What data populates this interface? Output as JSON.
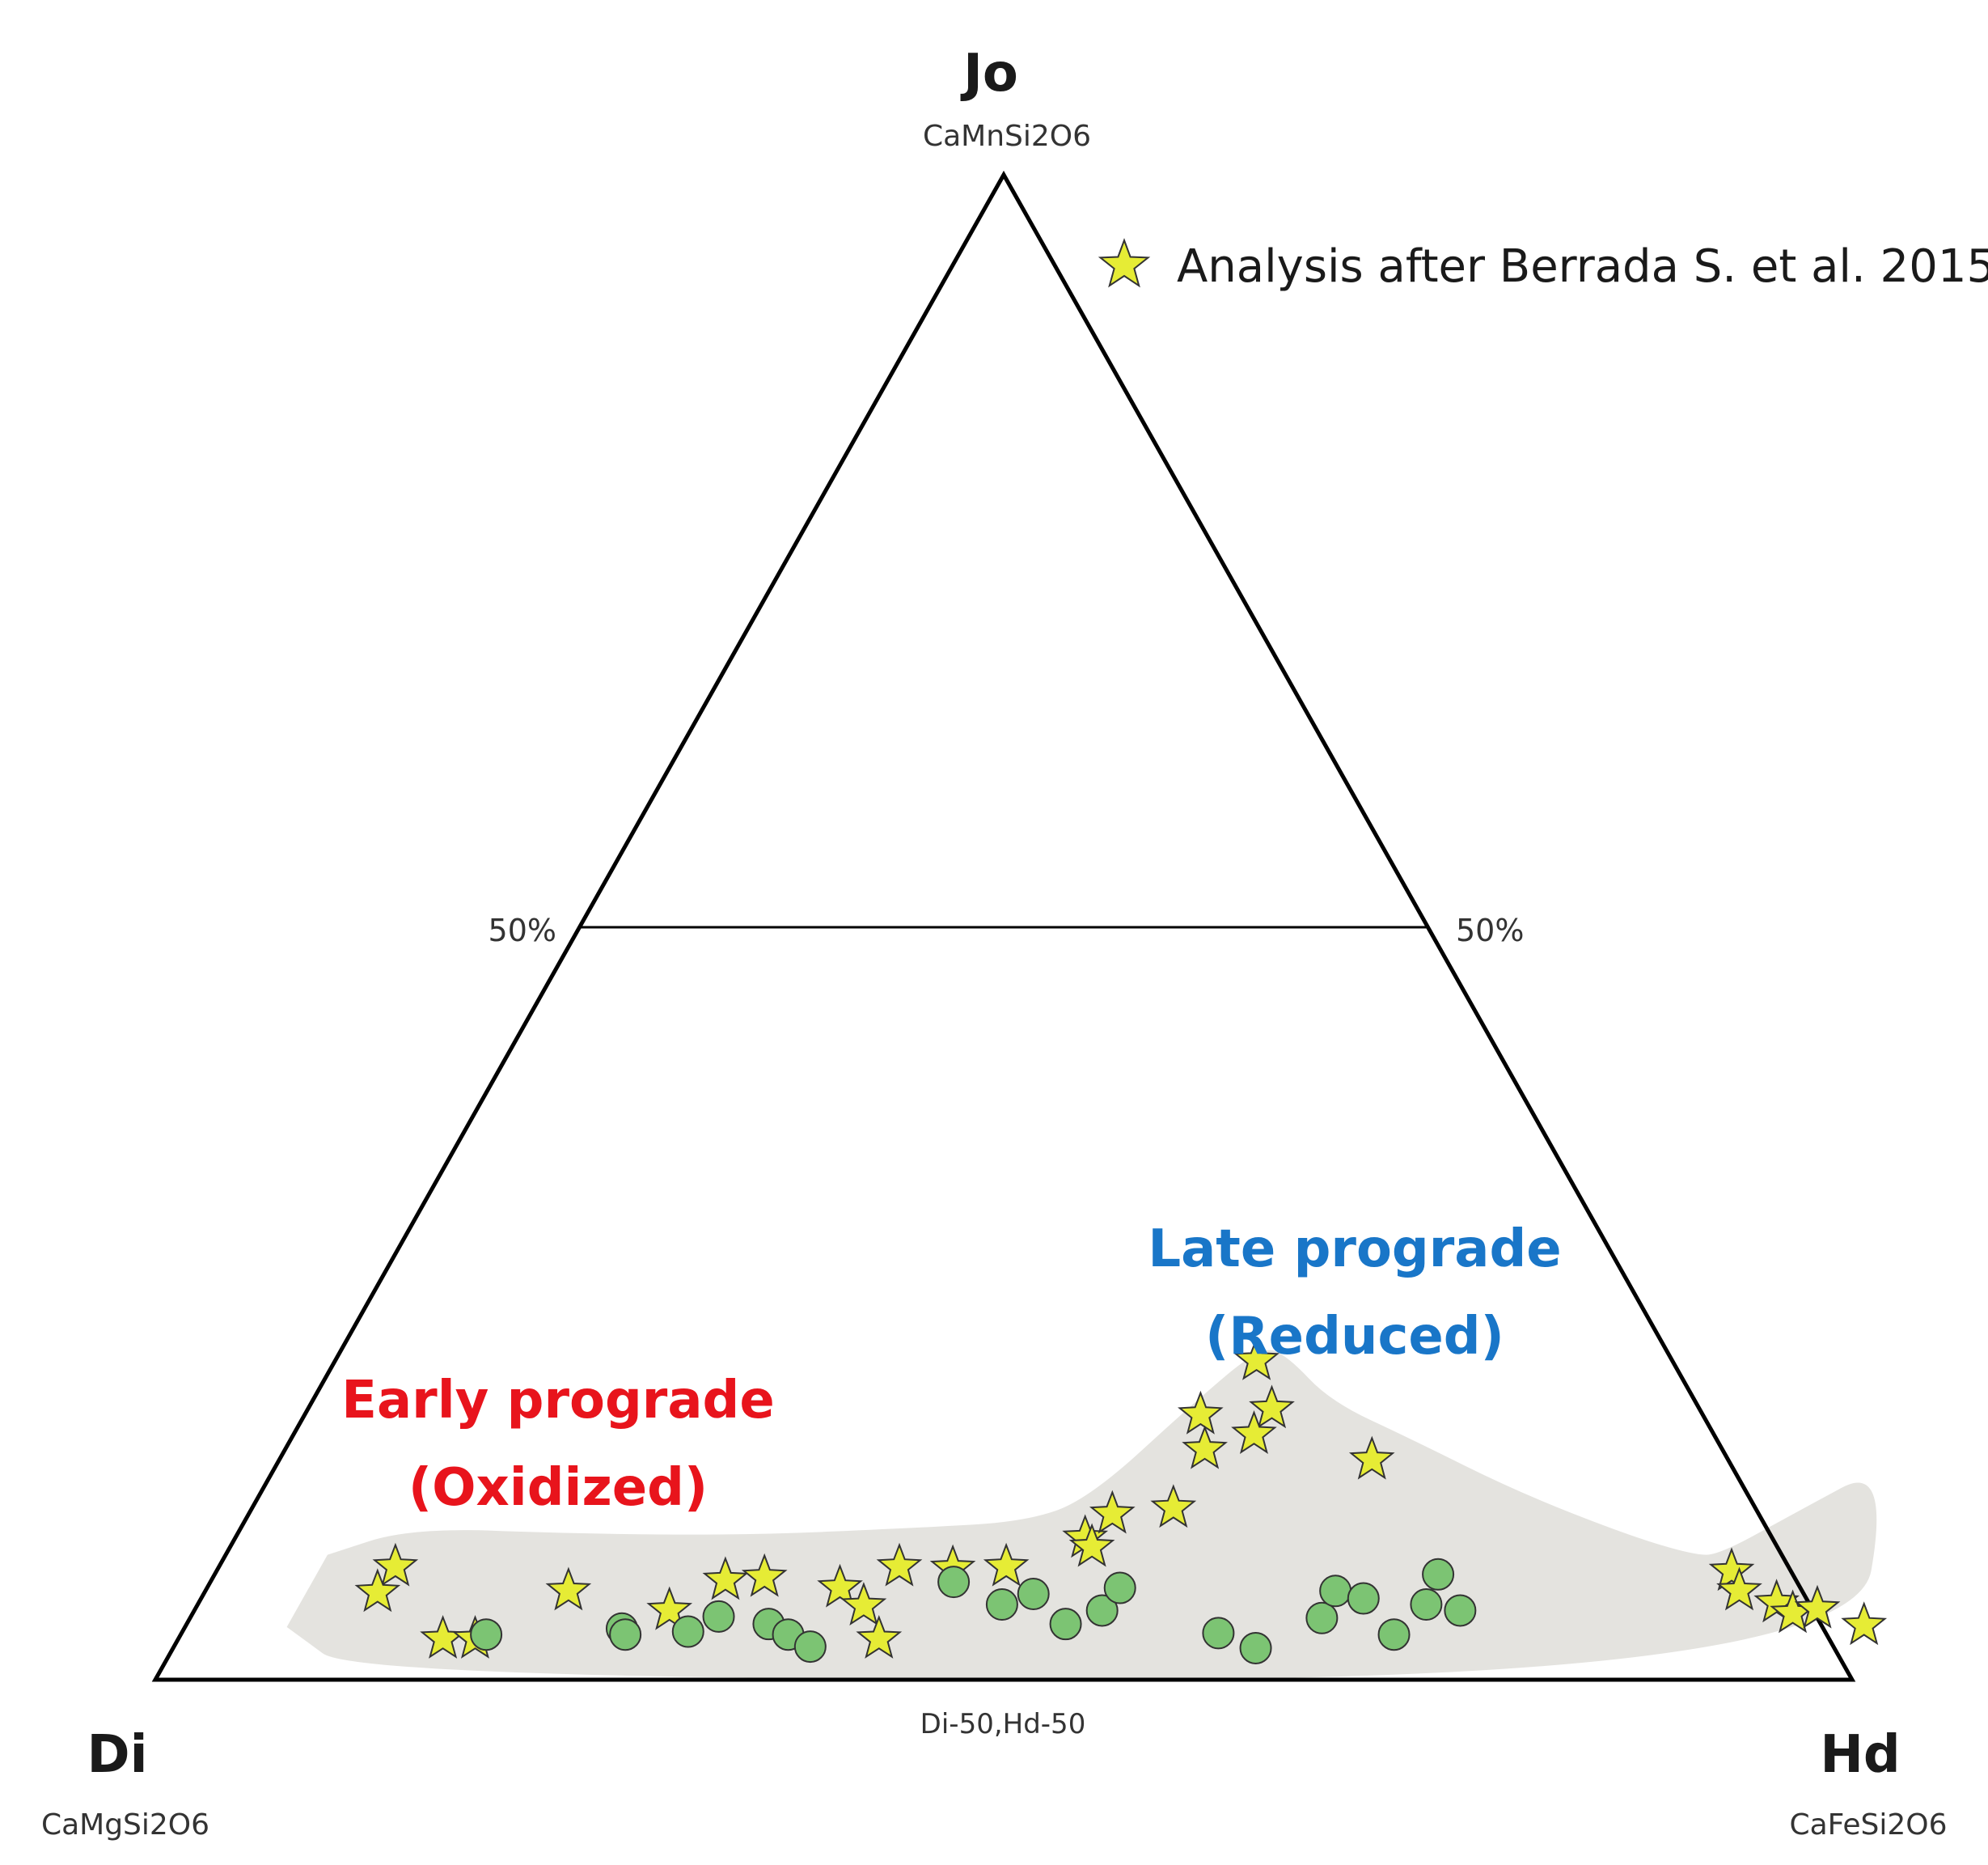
{
  "chart_data": {
    "type": "ternary",
    "vertices": {
      "top": {
        "name": "Jo",
        "formula": "CaMnSi2O6"
      },
      "left": {
        "name": "Di",
        "formula": "CaMgSi2O6"
      },
      "right": {
        "name": "Hd",
        "formula": "CaFeSi2O6"
      }
    },
    "tick_labels": {
      "left": "50%",
      "right": "50%",
      "bottom_mid": "Di-50,Hd-50"
    },
    "reference_line_jo": 50,
    "legend": [
      {
        "label": "Analysis after Berrada S. et al. 2015",
        "marker": "star"
      }
    ],
    "fields": [
      {
        "label_line1": "Early prograde",
        "label_line2": "(Oxidized)",
        "color": "#e8141c"
      },
      {
        "label_line1": "Late prograde",
        "label_line2": "(Reduced)",
        "color": "#1976c8"
      }
    ],
    "series": [
      {
        "name": "Analysis after Berrada S. et al. 2015",
        "marker": "star",
        "color": "#e6ec35",
        "points": [
          {
            "hd": 10.4,
            "jo": 7.5
          },
          {
            "hd": 10.2,
            "jo": 5.8
          },
          {
            "hd": 15.6,
            "jo": 2.7
          },
          {
            "hd": 17.5,
            "jo": 2.7
          },
          {
            "hd": 21.4,
            "jo": 5.9
          },
          {
            "hd": 28.0,
            "jo": 4.6
          },
          {
            "hd": 30.3,
            "jo": 6.6
          },
          {
            "hd": 32.5,
            "jo": 6.8
          },
          {
            "hd": 37.3,
            "jo": 6.1
          },
          {
            "hd": 39.3,
            "jo": 4.9
          },
          {
            "hd": 41.3,
            "jo": 2.7
          },
          {
            "hd": 40.1,
            "jo": 7.5
          },
          {
            "hd": 43.3,
            "jo": 7.4
          },
          {
            "hd": 46.4,
            "jo": 7.5
          },
          {
            "hd": 50.1,
            "jo": 9.4
          },
          {
            "hd": 50.8,
            "jo": 8.8
          },
          {
            "hd": 50.9,
            "jo": 11.0
          },
          {
            "hd": 54.3,
            "jo": 11.4
          },
          {
            "hd": 54.3,
            "jo": 21.2
          },
          {
            "hd": 52.8,
            "jo": 17.6
          },
          {
            "hd": 56.8,
            "jo": 18.0
          },
          {
            "hd": 56.6,
            "jo": 16.3
          },
          {
            "hd": 54.2,
            "jo": 15.3
          },
          {
            "hd": 64.4,
            "jo": 14.6
          },
          {
            "hd": 89.3,
            "jo": 7.2
          },
          {
            "hd": 90.4,
            "jo": 5.9
          },
          {
            "hd": 93.0,
            "jo": 5.1
          },
          {
            "hd": 94.3,
            "jo": 4.4
          },
          {
            "hd": 95.6,
            "jo": 4.7
          },
          {
            "hd": 98.9,
            "jo": 3.6
          }
        ]
      },
      {
        "name": "",
        "marker": "circle",
        "color": "#7cc473",
        "points": [
          {
            "hd": 18.0,
            "jo": 3.0
          },
          {
            "hd": 25.8,
            "jo": 3.4
          },
          {
            "hd": 26.2,
            "jo": 3.0
          },
          {
            "hd": 29.8,
            "jo": 3.2
          },
          {
            "hd": 31.1,
            "jo": 4.2
          },
          {
            "hd": 34.3,
            "jo": 3.7
          },
          {
            "hd": 35.8,
            "jo": 3.0
          },
          {
            "hd": 37.5,
            "jo": 2.2
          },
          {
            "hd": 43.8,
            "jo": 6.5
          },
          {
            "hd": 47.4,
            "jo": 5.0
          },
          {
            "hd": 48.9,
            "jo": 5.7
          },
          {
            "hd": 51.8,
            "jo": 3.7
          },
          {
            "hd": 53.5,
            "jo": 4.6
          },
          {
            "hd": 53.8,
            "jo": 6.1
          },
          {
            "hd": 61.1,
            "jo": 3.1
          },
          {
            "hd": 63.8,
            "jo": 2.1
          },
          {
            "hd": 66.7,
            "jo": 4.1
          },
          {
            "hd": 66.6,
            "jo": 5.9
          },
          {
            "hd": 68.5,
            "jo": 5.4
          },
          {
            "hd": 71.5,
            "jo": 3.0
          },
          {
            "hd": 72.1,
            "jo": 7.0
          },
          {
            "hd": 72.4,
            "jo": 5.0
          },
          {
            "hd": 74.6,
            "jo": 4.6
          }
        ]
      }
    ],
    "field_envelope": [
      {
        "hd": 6.0,
        "jo": 8.3
      },
      {
        "hd": 10.0,
        "jo": 10.1
      },
      {
        "hd": 20.0,
        "jo": 9.7
      },
      {
        "hd": 30.0,
        "jo": 9.6
      },
      {
        "hd": 40.0,
        "jo": 10.1
      },
      {
        "hd": 46.0,
        "jo": 10.5
      },
      {
        "hd": 49.0,
        "jo": 12.0
      },
      {
        "hd": 52.0,
        "jo": 18.4
      },
      {
        "hd": 54.1,
        "jo": 22.2
      },
      {
        "hd": 56.0,
        "jo": 21.5
      },
      {
        "hd": 60.0,
        "jo": 18.5
      },
      {
        "hd": 66.0,
        "jo": 16.0
      },
      {
        "hd": 74.0,
        "jo": 12.5
      },
      {
        "hd": 82.0,
        "jo": 9.6
      },
      {
        "hd": 86.5,
        "jo": 8.3
      },
      {
        "hd": 88.0,
        "jo": 8.3
      },
      {
        "hd": 91.0,
        "jo": 11.0
      },
      {
        "hd": 95.0,
        "jo": 14.5
      },
      {
        "hd": 100.0,
        "jo": 0.0
      },
      {
        "hd": 12.0,
        "jo": 0.0
      },
      {
        "hd": 6.0,
        "jo": 3.5
      }
    ]
  }
}
